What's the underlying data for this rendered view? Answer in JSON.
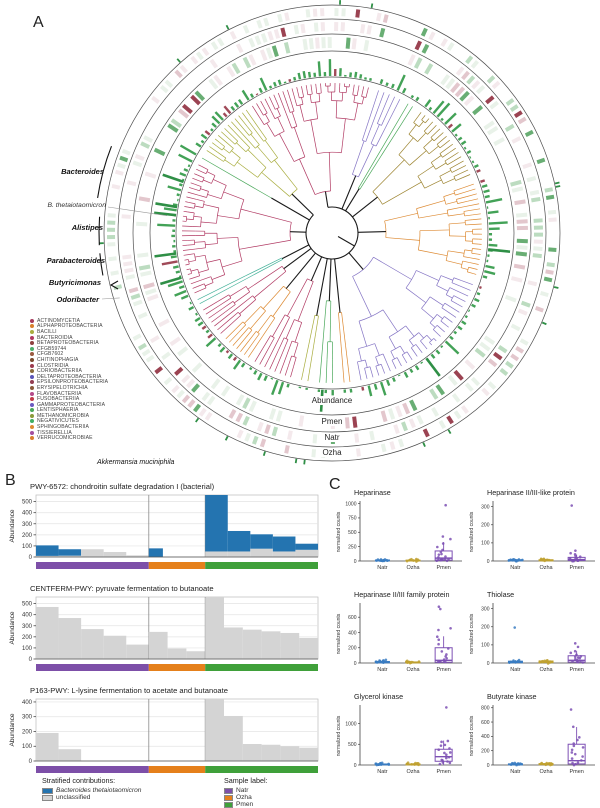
{
  "panels": {
    "a": "A",
    "b": "B",
    "c": "C"
  },
  "panel_a": {
    "genus_labels": [
      "Bacteroides",
      "B. thetaiotaomicron",
      "Alistipes",
      "Parabacteroides",
      "Butyricimonas",
      "Odoribacter"
    ],
    "species_label": "Akkermansia muciniphila",
    "ring_labels": [
      "Abundance",
      "Pmen",
      "Natr",
      "Ozha"
    ],
    "legend": [
      {
        "name": "ACTINOMYCETIA",
        "color": "#a63a5c"
      },
      {
        "name": "ALPHAPROTEOBACTERIA",
        "color": "#d97f2e"
      },
      {
        "name": "BACILLI",
        "color": "#a9ad3f"
      },
      {
        "name": "BACTEROIDIA",
        "color": "#b13a63"
      },
      {
        "name": "BETAPROTEOBACTERIA",
        "color": "#8f4140"
      },
      {
        "name": "CFGB59744",
        "color": "#4cb06c"
      },
      {
        "name": "CFGB7602",
        "color": "#9a5a40"
      },
      {
        "name": "CHITINOPHAGIA",
        "color": "#7a4a2e"
      },
      {
        "name": "CLOSTRIDIA",
        "color": "#9c3a4e"
      },
      {
        "name": "CORIOBACTERIIA",
        "color": "#8a6a3a"
      },
      {
        "name": "DELTAPROTEOBACTERIA",
        "color": "#5b55b8"
      },
      {
        "name": "EPSILONPROTEOBACTERIA",
        "color": "#933d52"
      },
      {
        "name": "ERYSIPELOTRICHIA",
        "color": "#8a5a3a"
      },
      {
        "name": "FLAVOBACTERIIA",
        "color": "#b54a8a"
      },
      {
        "name": "FUSOBACTERIIA",
        "color": "#c23a4a"
      },
      {
        "name": "GAMMAPROTEOBACTERIA",
        "color": "#6a5ac0"
      },
      {
        "name": "LENTISPHAERIA",
        "color": "#4aa85a"
      },
      {
        "name": "METHANOMICROBIA",
        "color": "#8a9a3a"
      },
      {
        "name": "NEGATIVICUTES",
        "color": "#3fae62"
      },
      {
        "name": "SPHINGOBACTERIIA",
        "color": "#dd8a33"
      },
      {
        "name": "TISSIERELLIA",
        "color": "#a44f9e"
      },
      {
        "name": "VERRUCOMICROBIAE",
        "color": "#d97f2e"
      }
    ],
    "tree_clades": [
      {
        "color": "#b13a63",
        "a0": -33,
        "a1": 15,
        "n": 26,
        "r0": 42
      },
      {
        "color": "#8474c4",
        "a0": 17,
        "a1": 28,
        "n": 5,
        "r0": 62
      },
      {
        "color": "#4aa85a",
        "a0": 29.5,
        "a1": 33.5,
        "n": 2,
        "r0": 52
      },
      {
        "color": "#9c832e",
        "a0": 35.5,
        "a1": 68,
        "n": 17,
        "r0": 58
      },
      {
        "color": "#dd8a33",
        "a0": 70,
        "a1": 107,
        "n": 19,
        "r0": 54
      },
      {
        "color": "#8474c4",
        "a0": 109,
        "a1": 170,
        "n": 26,
        "r0": 48
      },
      {
        "color": "#dd8a33",
        "a0": 172,
        "a1": 176.5,
        "n": 2,
        "r0": 80
      },
      {
        "color": "#4aa85a",
        "a0": 178.5,
        "a1": 186,
        "n": 3,
        "r0": 68
      },
      {
        "color": "#a9ad3f",
        "a0": 188,
        "a1": 193,
        "n": 2,
        "r0": 84
      },
      {
        "color": "#b13a63",
        "a0": 195,
        "a1": 212,
        "n": 8,
        "r0": 52
      },
      {
        "color": "#dd8a33",
        "a0": 213,
        "a1": 226,
        "n": 7,
        "r0": 72
      },
      {
        "color": "#b13a63",
        "a0": 227,
        "a1": 240,
        "n": 7,
        "r0": 60
      },
      {
        "color": "#45b29a",
        "a0": 241,
        "a1": 244.5,
        "n": 2,
        "r0": 56
      },
      {
        "color": "#b13a63",
        "a0": 245.5,
        "a1": 298,
        "n": 28,
        "r0": 42
      },
      {
        "color": "#4aa85a",
        "a0": 299,
        "a1": 301,
        "n": 1,
        "r0": 70
      },
      {
        "color": "#a9ad3f",
        "a0": 302.5,
        "a1": 326,
        "n": 13,
        "r0": 56
      }
    ]
  },
  "chart_data": [
    {
      "type": "bar",
      "id": "pwy-6572",
      "title": "PWY-6572: chondroitin sulfate degradation I (bacterial)",
      "ylabel": "Abundance",
      "yticks": [
        0,
        100,
        200,
        300,
        400,
        500
      ],
      "ylim": 560,
      "colors": {
        "btheta": "#2474b0",
        "unclassified": "#d4d4d4"
      },
      "groups": [
        {
          "label": "Natr",
          "color": "#7d4fa8",
          "slots": 5,
          "bars": [
            [
              10,
              95
            ],
            [
              12,
              58
            ],
            [
              70,
              0
            ],
            [
              45,
              0
            ],
            [
              15,
              0
            ]
          ]
        },
        {
          "label": "Ozha",
          "color": "#e5801b",
          "slots": 4,
          "bars": [
            [
              0,
              78
            ],
            null,
            null,
            null
          ]
        },
        {
          "label": "Pmen",
          "color": "#3fa03a",
          "slots": 5,
          "bars": [
            [
              50,
              510
            ],
            [
              50,
              185
            ],
            [
              75,
              130
            ],
            [
              50,
              135
            ],
            [
              65,
              55
            ]
          ]
        }
      ]
    },
    {
      "type": "bar",
      "id": "centferm-pwy",
      "title": "CENTFERM-PWY: pyruvate fermentation to butanoate",
      "ylabel": "Abundance",
      "yticks": [
        0,
        100,
        200,
        300,
        400,
        500
      ],
      "ylim": 560,
      "colors": {
        "btheta": "#2474b0",
        "unclassified": "#d4d4d4"
      },
      "groups": [
        {
          "label": "Natr",
          "color": "#7d4fa8",
          "slots": 5,
          "bars": [
            [
              470,
              0
            ],
            [
              370,
              0
            ],
            [
              270,
              0
            ],
            [
              210,
              0
            ],
            [
              130,
              0
            ]
          ]
        },
        {
          "label": "Ozha",
          "color": "#e5801b",
          "slots": 3,
          "bars": [
            [
              245,
              0
            ],
            [
              95,
              0
            ],
            [
              70,
              0
            ]
          ]
        },
        {
          "label": "Pmen",
          "color": "#3fa03a",
          "slots": 6,
          "bars": [
            [
              555,
              0
            ],
            [
              285,
              0
            ],
            [
              265,
              0
            ],
            [
              250,
              0
            ],
            [
              235,
              0
            ],
            [
              190,
              0
            ]
          ]
        }
      ]
    },
    {
      "type": "bar",
      "id": "p163-pwy",
      "title": "P163-PWY: L-lysine fermentation to acetate and butanoate",
      "ylabel": "Abundance",
      "yticks": [
        0,
        100,
        200,
        300,
        400
      ],
      "ylim": 420,
      "colors": {
        "btheta": "#2474b0",
        "unclassified": "#d4d4d4"
      },
      "groups": [
        {
          "label": "Natr",
          "color": "#7d4fa8",
          "slots": 5,
          "bars": [
            [
              190,
              0
            ],
            [
              80,
              0
            ],
            null,
            null,
            null
          ]
        },
        {
          "label": "Ozha",
          "color": "#e5801b",
          "slots": 3,
          "bars": [
            null,
            null,
            null
          ]
        },
        {
          "label": "Pmen",
          "color": "#3fa03a",
          "slots": 6,
          "bars": [
            [
              420,
              0
            ],
            [
              305,
              0
            ],
            [
              115,
              0
            ],
            [
              110,
              0
            ],
            [
              100,
              0
            ],
            [
              90,
              0
            ]
          ]
        }
      ]
    },
    {
      "type": "box",
      "id": "heparinase",
      "title": "Heparinase",
      "ylabel": "normalized counts",
      "yticks": [
        0,
        250,
        500,
        750,
        1000
      ],
      "ylim": [
        0,
        1010
      ],
      "groups": [
        {
          "label": "Natr",
          "color": "#3a7cc2",
          "box": {
            "lo": 0,
            "q1": 3,
            "med": 8,
            "q3": 18,
            "hi": 28
          },
          "points": [
            2,
            4,
            6,
            8,
            10,
            12,
            15,
            18,
            20,
            25,
            5,
            9,
            14,
            22,
            11
          ]
        },
        {
          "label": "Ozha",
          "color": "#bfa130",
          "box": {
            "lo": 0,
            "q1": 3,
            "med": 7,
            "q3": 15,
            "hi": 25
          },
          "points": [
            1,
            3,
            5,
            8,
            10,
            13,
            16,
            20,
            6,
            11,
            18,
            24
          ]
        },
        {
          "label": "Pmen",
          "color": "#7d50b4",
          "box": {
            "lo": 0,
            "q1": 15,
            "med": 50,
            "q3": 175,
            "hi": 330
          },
          "points": [
            960,
            430,
            380,
            300,
            250,
            200,
            160,
            130,
            100,
            80,
            60,
            50,
            40,
            30,
            25,
            20,
            15,
            10,
            8,
            5
          ]
        }
      ]
    },
    {
      "type": "box",
      "id": "heparinase-like",
      "title": "Heparinase II/III-like protein",
      "ylabel": "normalized counts",
      "yticks": [
        0,
        100,
        200,
        300
      ],
      "ylim": [
        0,
        320
      ],
      "groups": [
        {
          "label": "Natr",
          "color": "#3a7cc2",
          "box": {
            "lo": 0,
            "q1": 1,
            "med": 3,
            "q3": 7,
            "hi": 12
          },
          "points": [
            1,
            2,
            3,
            4,
            5,
            6,
            8,
            10,
            2,
            4,
            7,
            9
          ]
        },
        {
          "label": "Ozha",
          "color": "#bfa130",
          "box": {
            "lo": 0,
            "q1": 1,
            "med": 3,
            "q3": 7,
            "hi": 12
          },
          "points": [
            1,
            2,
            3,
            5,
            6,
            8,
            10,
            3,
            5,
            7,
            9,
            4
          ]
        },
        {
          "label": "Pmen",
          "color": "#7d50b4",
          "box": {
            "lo": 0,
            "q1": 3,
            "med": 8,
            "q3": 20,
            "hi": 35
          },
          "points": [
            305,
            60,
            45,
            35,
            25,
            20,
            15,
            12,
            10,
            8,
            6,
            5,
            4,
            3,
            2
          ]
        }
      ]
    },
    {
      "type": "box",
      "id": "heparinase-family",
      "title": "Heparinase II/III family protein",
      "ylabel": "normalized counts",
      "yticks": [
        0,
        200,
        400,
        600
      ],
      "ylim": [
        0,
        760
      ],
      "groups": [
        {
          "label": "Natr",
          "color": "#3a7cc2",
          "box": {
            "lo": 0,
            "q1": 3,
            "med": 8,
            "q3": 20,
            "hi": 35
          },
          "points": [
            2,
            5,
            8,
            12,
            16,
            20,
            25,
            30,
            35,
            10,
            14,
            18,
            40
          ]
        },
        {
          "label": "Ozha",
          "color": "#bfa130",
          "box": {
            "lo": 0,
            "q1": 2,
            "med": 6,
            "q3": 14,
            "hi": 24
          },
          "points": [
            1,
            3,
            6,
            9,
            12,
            15,
            18,
            22,
            5,
            8,
            11,
            14
          ]
        },
        {
          "label": "Pmen",
          "color": "#7d50b4",
          "box": {
            "lo": 0,
            "q1": 10,
            "med": 35,
            "q3": 200,
            "hi": 350
          },
          "points": [
            730,
            715,
            460,
            430,
            350,
            300,
            250,
            200,
            150,
            120,
            90,
            70,
            50,
            35,
            25,
            15,
            10,
            5
          ]
        }
      ]
    },
    {
      "type": "box",
      "id": "thiolase",
      "title": "Thiolase",
      "ylabel": "normalized counts",
      "yticks": [
        0,
        100,
        200,
        300
      ],
      "ylim": [
        0,
        320
      ],
      "groups": [
        {
          "label": "Natr",
          "color": "#3a7cc2",
          "box": {
            "lo": 0,
            "q1": 2,
            "med": 5,
            "q3": 10,
            "hi": 16
          },
          "points": [
            195,
            2,
            4,
            6,
            8,
            10,
            12,
            5,
            9,
            3,
            7,
            11
          ]
        },
        {
          "label": "Ozha",
          "color": "#bfa130",
          "box": {
            "lo": 0,
            "q1": 2,
            "med": 5,
            "q3": 11,
            "hi": 18
          },
          "points": [
            1,
            3,
            5,
            7,
            9,
            12,
            15,
            4,
            8,
            11,
            14,
            6
          ]
        },
        {
          "label": "Pmen",
          "color": "#7d50b4",
          "box": {
            "lo": 0,
            "q1": 5,
            "med": 15,
            "q3": 40,
            "hi": 65
          },
          "points": [
            105,
            85,
            65,
            55,
            45,
            40,
            35,
            30,
            25,
            20,
            15,
            12,
            10,
            8,
            5,
            3
          ]
        }
      ]
    },
    {
      "type": "box",
      "id": "glycerol-kinase",
      "title": "Glycerol kinase",
      "ylabel": "normalized counts",
      "yticks": [
        0,
        500,
        1000
      ],
      "ylim": [
        0,
        1400
      ],
      "groups": [
        {
          "label": "Natr",
          "color": "#3a7cc2",
          "box": {
            "lo": 0,
            "q1": 5,
            "med": 12,
            "q3": 25,
            "hi": 40
          },
          "points": [
            3,
            8,
            12,
            18,
            25,
            32,
            40,
            10,
            15,
            22,
            28,
            35
          ]
        },
        {
          "label": "Ozha",
          "color": "#bfa130",
          "box": {
            "lo": 0,
            "q1": 5,
            "med": 12,
            "q3": 25,
            "hi": 40
          },
          "points": [
            4,
            9,
            14,
            20,
            26,
            34,
            42,
            12,
            17,
            24,
            30,
            38
          ]
        },
        {
          "label": "Pmen",
          "color": "#7d50b4",
          "box": {
            "lo": 0,
            "q1": 90,
            "med": 200,
            "q3": 380,
            "hi": 590
          },
          "points": [
            1380,
            590,
            550,
            500,
            450,
            400,
            360,
            320,
            280,
            240,
            200,
            170,
            140,
            110,
            90,
            70,
            50,
            30
          ]
        }
      ]
    },
    {
      "type": "box",
      "id": "butyrate-kinase",
      "title": "Butyrate kinase",
      "ylabel": "normalized counts",
      "yticks": [
        0,
        200,
        400,
        600,
        800
      ],
      "ylim": [
        0,
        810
      ],
      "groups": [
        {
          "label": "Natr",
          "color": "#3a7cc2",
          "box": {
            "lo": 0,
            "q1": 3,
            "med": 8,
            "q3": 16,
            "hi": 26
          },
          "points": [
            2,
            5,
            8,
            11,
            15,
            19,
            24,
            6,
            10,
            14,
            18,
            22
          ]
        },
        {
          "label": "Ozha",
          "color": "#bfa130",
          "box": {
            "lo": 0,
            "q1": 4,
            "med": 10,
            "q3": 20,
            "hi": 34
          },
          "points": [
            3,
            6,
            10,
            14,
            18,
            24,
            30,
            8,
            12,
            16,
            22,
            28
          ]
        },
        {
          "label": "Pmen",
          "color": "#7d50b4",
          "box": {
            "lo": 0,
            "q1": 15,
            "med": 60,
            "q3": 290,
            "hi": 530
          },
          "points": [
            770,
            530,
            380,
            340,
            300,
            270,
            240,
            210,
            180,
            150,
            120,
            90,
            60,
            40,
            25,
            15,
            8
          ]
        }
      ]
    }
  ],
  "panel_b_legend": {
    "stratified_title": "Stratified contributions:",
    "items": [
      {
        "label": "Bacteroides thetaiotaomicron",
        "color": "#2474b0",
        "italic": true
      },
      {
        "label": "unclassified",
        "color": "#d4d4d4",
        "italic": false
      }
    ],
    "sample_title": "Sample label:",
    "samples": [
      {
        "label": "Natr",
        "color": "#7d4fa8"
      },
      {
        "label": "Ozha",
        "color": "#e5801b"
      },
      {
        "label": "Pmen",
        "color": "#3fa03a"
      }
    ]
  }
}
